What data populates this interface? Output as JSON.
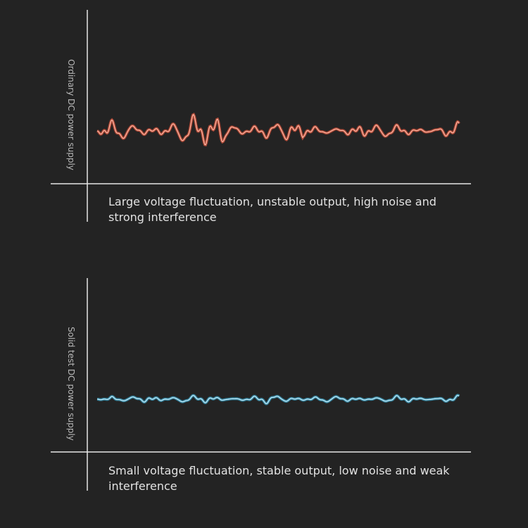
{
  "panels": [
    {
      "axis_label": "Ordinary DC power supply",
      "caption": "Large voltage fluctuation, unstable output, high noise and strong interference"
    },
    {
      "axis_label": "Solid test DC power supply",
      "caption": "Small voltage fluctuation, stable output, low noise and weak interference"
    }
  ]
}
